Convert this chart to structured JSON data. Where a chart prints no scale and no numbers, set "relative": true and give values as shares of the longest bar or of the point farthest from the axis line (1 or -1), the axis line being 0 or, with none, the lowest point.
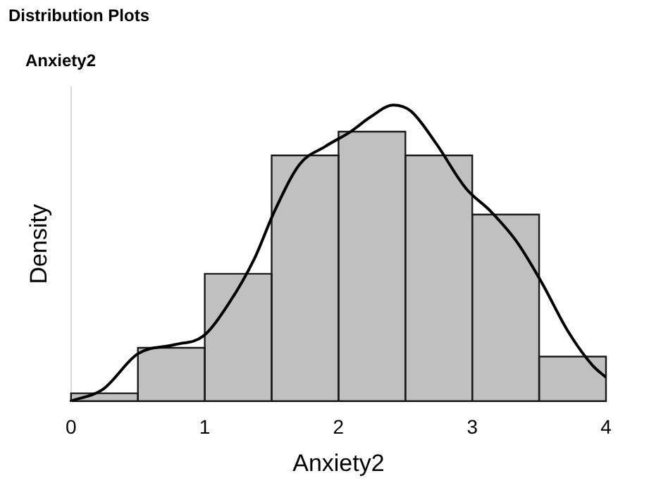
{
  "chart_data": {
    "type": "histogram",
    "title": "Distribution Plots",
    "subtitle": "Anxiety2",
    "xlabel": "Anxiety2",
    "ylabel": "Density",
    "relative": true,
    "bins": [
      0,
      0.5,
      1,
      1.5,
      2,
      2.5,
      3,
      3.5,
      4
    ],
    "values": [
      0.026,
      0.18,
      0.43,
      0.83,
      0.91,
      0.83,
      0.63,
      0.15
    ],
    "color": "#c0c0c0",
    "series": [
      {
        "type": "line",
        "color": "#000000",
        "x": [
          0,
          0.24,
          0.5,
          0.77,
          0.99,
          1.18,
          1.37,
          1.52,
          1.71,
          1.9,
          2.09,
          2.24,
          2.41,
          2.54,
          2.73,
          2.95,
          3.14,
          3.33,
          3.52,
          3.71,
          3.9,
          4
        ],
        "values": [
          0,
          0.04,
          0.16,
          0.19,
          0.22,
          0.33,
          0.48,
          0.64,
          0.8,
          0.86,
          0.91,
          0.96,
          1,
          0.98,
          0.87,
          0.72,
          0.64,
          0.54,
          0.4,
          0.24,
          0.12,
          0.08
        ]
      }
    ],
    "xlim": [
      0,
      4
    ],
    "xticks": [
      0,
      1,
      2,
      3,
      4
    ],
    "grid": false,
    "legend": false
  }
}
